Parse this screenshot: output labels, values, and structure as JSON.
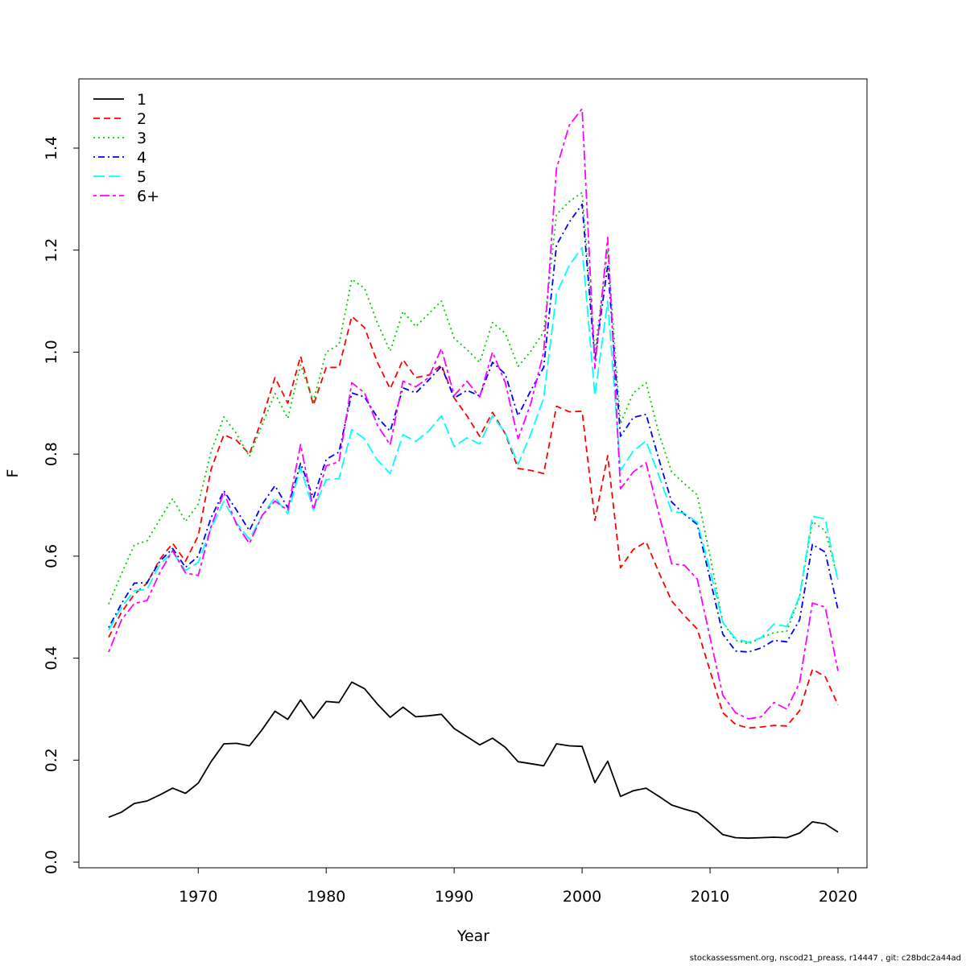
{
  "footer": "stockassessment.org, nscod21_preass, r14447 , git: c28bdc2a44ad",
  "chart_data": {
    "type": "line",
    "title": "",
    "xlabel": "Year",
    "ylabel": "F",
    "xlim": [
      1963,
      2020
    ],
    "ylim": [
      0,
      1.48
    ],
    "x_ticks": [
      1970,
      1980,
      1990,
      2000,
      2010,
      2020
    ],
    "y_ticks": [
      0.0,
      0.2,
      0.4,
      0.6,
      0.8,
      1.0,
      1.2,
      1.4
    ],
    "y_tick_labels": [
      "0.0",
      "0.2",
      "0.4",
      "0.6",
      "0.8",
      "1.0",
      "1.2",
      "1.4"
    ],
    "grid": false,
    "legend_position": "top-left",
    "x": [
      1963,
      1964,
      1965,
      1966,
      1967,
      1968,
      1969,
      1970,
      1971,
      1972,
      1973,
      1974,
      1975,
      1976,
      1977,
      1978,
      1979,
      1980,
      1981,
      1982,
      1983,
      1984,
      1985,
      1986,
      1987,
      1988,
      1989,
      1990,
      1991,
      1992,
      1993,
      1994,
      1995,
      1996,
      1997,
      1998,
      1999,
      2000,
      2001,
      2002,
      2003,
      2004,
      2005,
      2006,
      2007,
      2008,
      2009,
      2010,
      2011,
      2012,
      2013,
      2014,
      2015,
      2016,
      2017,
      2018,
      2019,
      2020
    ],
    "series": [
      {
        "name": "1",
        "color": "#000000",
        "dash": "solid",
        "values": [
          0.088,
          0.098,
          0.115,
          0.12,
          0.132,
          0.145,
          0.135,
          0.155,
          0.197,
          0.232,
          0.233,
          0.228,
          0.26,
          0.296,
          0.28,
          0.318,
          0.282,
          0.315,
          0.313,
          0.353,
          0.34,
          0.31,
          0.284,
          0.304,
          0.285,
          0.287,
          0.29,
          0.262,
          0.246,
          0.23,
          0.243,
          0.225,
          0.197,
          0.193,
          0.189,
          0.232,
          0.228,
          0.227,
          0.156,
          0.198,
          0.129,
          0.14,
          0.145,
          0.129,
          0.112,
          0.104,
          0.097,
          0.076,
          0.054,
          0.048,
          0.047,
          0.048,
          0.049,
          0.048,
          0.057,
          0.079,
          0.075,
          0.059
        ]
      },
      {
        "name": "2",
        "color": "#ff0000",
        "dash": "dashed",
        "values": [
          0.441,
          0.49,
          0.525,
          0.547,
          0.594,
          0.625,
          0.59,
          0.64,
          0.77,
          0.838,
          0.827,
          0.8,
          0.87,
          0.95,
          0.9,
          0.992,
          0.896,
          0.97,
          0.97,
          1.07,
          1.048,
          0.98,
          0.928,
          0.985,
          0.95,
          0.955,
          0.975,
          0.91,
          0.875,
          0.835,
          0.882,
          0.84,
          0.772,
          0.768,
          0.762,
          0.894,
          0.883,
          0.884,
          0.67,
          0.797,
          0.577,
          0.613,
          0.628,
          0.568,
          0.512,
          0.483,
          0.457,
          0.375,
          0.293,
          0.27,
          0.263,
          0.265,
          0.268,
          0.267,
          0.297,
          0.378,
          0.364,
          0.308
        ]
      },
      {
        "name": "3",
        "color": "#00cd00",
        "dash": "dotted",
        "values": [
          0.506,
          0.565,
          0.622,
          0.63,
          0.672,
          0.713,
          0.668,
          0.702,
          0.805,
          0.873,
          0.84,
          0.795,
          0.858,
          0.919,
          0.87,
          0.975,
          0.904,
          1.0,
          1.015,
          1.143,
          1.125,
          1.057,
          1.002,
          1.08,
          1.05,
          1.075,
          1.1,
          1.027,
          1.005,
          0.98,
          1.058,
          1.037,
          0.972,
          1.002,
          1.04,
          1.27,
          1.295,
          1.313,
          1.0,
          1.2,
          0.86,
          0.92,
          0.94,
          0.84,
          0.765,
          0.742,
          0.72,
          0.6,
          0.47,
          0.435,
          0.428,
          0.44,
          0.45,
          0.453,
          0.52,
          0.668,
          0.65,
          0.555
        ]
      },
      {
        "name": "4",
        "color": "#0000ff",
        "dash": "dotdash",
        "values": [
          0.46,
          0.507,
          0.547,
          0.548,
          0.59,
          0.615,
          0.578,
          0.6,
          0.675,
          0.728,
          0.69,
          0.65,
          0.702,
          0.738,
          0.695,
          0.782,
          0.714,
          0.79,
          0.804,
          0.92,
          0.912,
          0.872,
          0.845,
          0.93,
          0.92,
          0.945,
          0.972,
          0.91,
          0.925,
          0.914,
          0.98,
          0.957,
          0.875,
          0.925,
          0.97,
          1.21,
          1.255,
          1.29,
          0.985,
          1.17,
          0.835,
          0.872,
          0.878,
          0.79,
          0.706,
          0.682,
          0.662,
          0.555,
          0.447,
          0.414,
          0.412,
          0.42,
          0.435,
          0.432,
          0.475,
          0.623,
          0.608,
          0.495
        ]
      },
      {
        "name": "5",
        "color": "#00ffff",
        "dash": "longdash",
        "values": [
          0.455,
          0.5,
          0.532,
          0.535,
          0.584,
          0.608,
          0.572,
          0.588,
          0.655,
          0.707,
          0.665,
          0.633,
          0.68,
          0.715,
          0.683,
          0.774,
          0.69,
          0.75,
          0.752,
          0.848,
          0.83,
          0.788,
          0.762,
          0.838,
          0.825,
          0.845,
          0.875,
          0.815,
          0.832,
          0.82,
          0.875,
          0.842,
          0.78,
          0.84,
          0.91,
          1.115,
          1.17,
          1.205,
          0.915,
          1.1,
          0.768,
          0.806,
          0.826,
          0.758,
          0.688,
          0.684,
          0.666,
          0.572,
          0.47,
          0.438,
          0.431,
          0.44,
          0.467,
          0.462,
          0.522,
          0.678,
          0.673,
          0.55
        ]
      },
      {
        "name": "6+",
        "color": "#ff00ff",
        "dash": "twodash",
        "values": [
          0.412,
          0.475,
          0.507,
          0.513,
          0.568,
          0.611,
          0.567,
          0.562,
          0.658,
          0.725,
          0.662,
          0.625,
          0.68,
          0.708,
          0.69,
          0.819,
          0.691,
          0.777,
          0.785,
          0.94,
          0.92,
          0.857,
          0.818,
          0.943,
          0.932,
          0.95,
          1.007,
          0.915,
          0.943,
          0.912,
          1.0,
          0.94,
          0.83,
          0.9,
          1.0,
          1.36,
          1.445,
          1.477,
          0.968,
          1.225,
          0.732,
          0.765,
          0.783,
          0.683,
          0.585,
          0.582,
          0.555,
          0.44,
          0.327,
          0.293,
          0.281,
          0.285,
          0.313,
          0.3,
          0.352,
          0.508,
          0.5,
          0.375
        ]
      }
    ]
  }
}
